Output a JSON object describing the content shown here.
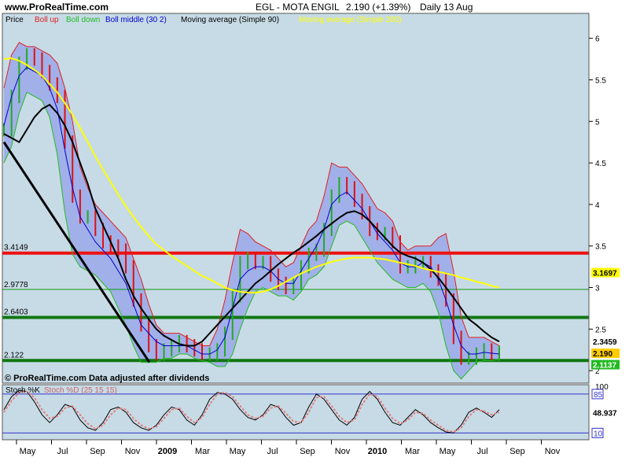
{
  "header": {
    "site": "www.ProRealTime.com",
    "symbol": "EGL - MOTA ENGIL",
    "quote": "2.190 (+1.39%)",
    "period": "Daily 13 Aug"
  },
  "legend": {
    "price": "Price",
    "boll_up": "Boll up",
    "boll_down": "Boll down",
    "boll_middle": "Boll middle (30 2)",
    "ma_simple_90": "Moving average (Simple 90)",
    "ma_simple_200": "Moving average (Simple 200)",
    "stoch_k": "Stoch %K",
    "stoch_d": "Stoch %D (25 15 15)"
  },
  "footer_note": "© ProRealTime.com  Data adjusted after dividends",
  "colors": {
    "plot_bg": "#c7dbe6",
    "band_fill": "#9aa8e8",
    "boll_up": "#e02020",
    "boll_down": "#22bb22",
    "boll_middle": "#0000cc",
    "ma90": "#000000",
    "ma200": "#ffff00",
    "candle_up": "#22aa22",
    "candle_down": "#dd1111",
    "red_line": "#ee1111",
    "green_line": "#118811"
  },
  "chart_data": [
    {
      "type": "line",
      "title": "EGL - MOTA ENGIL",
      "x_ticks": [
        "May",
        "Jul",
        "Sep",
        "Nov",
        "2009",
        "Mar",
        "May",
        "Jul",
        "Sep",
        "Nov",
        "2010",
        "Mar",
        "May",
        "Jul",
        "Sep",
        "Nov"
      ],
      "y_ticks": [
        "6",
        "5.5",
        "5",
        "4.5",
        "4",
        "3.5",
        "3",
        "2.5",
        "2"
      ],
      "ylim": [
        1.85,
        6.3
      ],
      "horizontal_lines": [
        {
          "label": "3.4149",
          "value": 3.4149,
          "color": "#ee1111"
        },
        {
          "label": "2.9778",
          "value": 2.9778,
          "color": "#119911"
        },
        {
          "label": "2.6403",
          "value": 2.6403,
          "color": "#117711"
        },
        {
          "label": "2.122",
          "value": 2.122,
          "color": "#117711"
        }
      ],
      "series": [
        {
          "name": "Price",
          "values": [
            4.9,
            5.3,
            5.7,
            5.8,
            5.75,
            5.6,
            5.45,
            5.3,
            4.75,
            4.1,
            3.85,
            3.85,
            3.7,
            3.55,
            3.5,
            3.45,
            3.25,
            2.85,
            2.55,
            2.3,
            2.2,
            2.25,
            2.3,
            2.35,
            2.3,
            2.25,
            2.2,
            2.2,
            2.25,
            2.45,
            2.9,
            3.3,
            3.35,
            3.3,
            3.3,
            3.15,
            3.05,
            3.0,
            3.05,
            3.25,
            3.4,
            3.45,
            3.7,
            4.1,
            4.25,
            4.2,
            4.05,
            3.9,
            3.7,
            3.65,
            3.65,
            3.55,
            3.25,
            3.25,
            3.3,
            3.3,
            3.2,
            3.1,
            2.85,
            2.4,
            2.15,
            2.15,
            2.2,
            2.25,
            2.2,
            2.22
          ]
        },
        {
          "name": "Boll up",
          "values": [
            5.4,
            5.8,
            5.95,
            5.9,
            5.9,
            5.85,
            5.8,
            5.7,
            5.4,
            5.0,
            4.45,
            4.2,
            4.0,
            3.9,
            3.8,
            3.7,
            3.6,
            3.35,
            3.1,
            2.8,
            2.55,
            2.45,
            2.45,
            2.45,
            2.4,
            2.35,
            2.3,
            2.3,
            2.5,
            2.85,
            3.3,
            3.7,
            3.65,
            3.55,
            3.5,
            3.45,
            3.35,
            3.25,
            3.3,
            3.5,
            3.7,
            3.8,
            4.1,
            4.5,
            4.45,
            4.45,
            4.35,
            4.25,
            4.1,
            3.95,
            3.9,
            3.8,
            3.55,
            3.45,
            3.5,
            3.5,
            3.5,
            3.6,
            3.65,
            3.2,
            2.65,
            2.4,
            2.4,
            2.4,
            2.35,
            2.3
          ]
        },
        {
          "name": "Boll down",
          "values": [
            4.5,
            4.7,
            5.1,
            5.35,
            5.3,
            5.25,
            5.05,
            4.6,
            3.9,
            3.4,
            3.25,
            3.2,
            3.15,
            3.05,
            2.95,
            2.75,
            2.55,
            2.3,
            2.1,
            2.1,
            2.1,
            2.15,
            2.15,
            2.2,
            2.2,
            2.15,
            2.12,
            2.1,
            2.05,
            2.05,
            2.2,
            2.5,
            2.75,
            2.95,
            3.0,
            2.95,
            2.9,
            2.9,
            2.85,
            2.95,
            3.1,
            3.15,
            3.25,
            3.5,
            3.75,
            3.8,
            3.75,
            3.6,
            3.45,
            3.3,
            3.2,
            3.1,
            3.05,
            3.0,
            3.0,
            3.05,
            2.95,
            2.7,
            2.3,
            2.0,
            1.9,
            2.0,
            2.1,
            2.12,
            2.12,
            2.14
          ]
        },
        {
          "name": "Boll middle (30 2)",
          "values": [
            4.95,
            5.3,
            5.55,
            5.65,
            5.6,
            5.55,
            5.4,
            5.15,
            4.65,
            4.2,
            3.85,
            3.7,
            3.55,
            3.45,
            3.35,
            3.2,
            3.05,
            2.8,
            2.55,
            2.45,
            2.35,
            2.3,
            2.3,
            2.3,
            2.3,
            2.25,
            2.2,
            2.2,
            2.25,
            2.4,
            2.75,
            3.1,
            3.2,
            3.25,
            3.25,
            3.2,
            3.1,
            3.05,
            3.05,
            3.2,
            3.35,
            3.5,
            3.7,
            4.0,
            4.1,
            4.15,
            4.05,
            3.95,
            3.8,
            3.65,
            3.55,
            3.45,
            3.3,
            3.25,
            3.25,
            3.3,
            3.25,
            3.1,
            2.85,
            2.55,
            2.3,
            2.2,
            2.2,
            2.22,
            2.21,
            2.2
          ]
        },
        {
          "name": "Moving average (Simple 90)",
          "values": [
            4.85,
            4.8,
            4.75,
            4.9,
            5.05,
            5.15,
            5.2,
            5.1,
            4.95,
            4.75,
            4.5,
            4.25,
            3.95,
            3.75,
            3.55,
            3.35,
            3.1,
            2.9,
            2.75,
            2.62,
            2.5,
            2.42,
            2.37,
            2.32,
            2.3,
            2.3,
            2.35,
            2.45,
            2.55,
            2.65,
            2.75,
            2.85,
            2.95,
            3.05,
            3.12,
            3.2,
            3.28,
            3.35,
            3.42,
            3.48,
            3.55,
            3.62,
            3.7,
            3.77,
            3.84,
            3.9,
            3.92,
            3.88,
            3.8,
            3.7,
            3.6,
            3.5,
            3.42,
            3.38,
            3.35,
            3.3,
            3.22,
            3.12,
            3.0,
            2.88,
            2.75,
            2.62,
            2.55,
            2.47,
            2.4,
            2.35
          ]
        },
        {
          "name": "Moving average (Simple 200)",
          "values": [
            5.75,
            5.76,
            5.73,
            5.68,
            5.62,
            5.55,
            5.45,
            5.35,
            5.22,
            5.08,
            4.92,
            4.75,
            4.58,
            4.42,
            4.27,
            4.12,
            3.98,
            3.85,
            3.73,
            3.62,
            3.52,
            3.45,
            3.38,
            3.32,
            3.26,
            3.2,
            3.14,
            3.1,
            3.05,
            3.0,
            2.97,
            2.95,
            2.94,
            2.94,
            2.95,
            2.98,
            3.02,
            3.07,
            3.12,
            3.17,
            3.21,
            3.25,
            3.28,
            3.31,
            3.33,
            3.35,
            3.36,
            3.36,
            3.36,
            3.35,
            3.34,
            3.32,
            3.3,
            3.28,
            3.26,
            3.23,
            3.21,
            3.19,
            3.17,
            3.15,
            3.12,
            3.1,
            3.07,
            3.05,
            3.02,
            3.0
          ]
        }
      ],
      "right_value_labels": [
        {
          "label": "3.1697",
          "value": 3.18,
          "bg": "#ffff00",
          "color": "#000000"
        },
        {
          "label": "2.3459",
          "value": 2.35,
          "bg": "#ffffff",
          "color": "#000000"
        },
        {
          "label": "2.190",
          "value": 2.19,
          "bg": "#ffcc00",
          "color": "#000000"
        },
        {
          "label": "2.1137",
          "value": 2.11,
          "bg": "#22bb22",
          "color": "#ffffff"
        }
      ]
    },
    {
      "type": "line",
      "title": "Stoch %K",
      "y_ticks": [
        "100",
        "85",
        "10"
      ],
      "ylim": [
        0,
        100
      ],
      "horizontal_lines": [
        {
          "label": "85",
          "value": 85
        },
        {
          "label": "10",
          "value": 10
        }
      ],
      "series": [
        {
          "name": "Stoch %K",
          "values": [
            55,
            80,
            92,
            90,
            70,
            45,
            30,
            45,
            65,
            60,
            35,
            20,
            15,
            30,
            55,
            60,
            50,
            30,
            20,
            15,
            25,
            45,
            60,
            55,
            35,
            25,
            45,
            75,
            88,
            85,
            75,
            55,
            40,
            35,
            45,
            65,
            60,
            40,
            25,
            30,
            60,
            85,
            75,
            55,
            35,
            25,
            40,
            75,
            90,
            75,
            50,
            30,
            25,
            40,
            55,
            45,
            30,
            20,
            12,
            10,
            25,
            50,
            58,
            50,
            40,
            55
          ]
        },
        {
          "name": "Stoch %D (25 15 15)",
          "values": [
            50,
            72,
            88,
            90,
            78,
            55,
            38,
            42,
            58,
            62,
            45,
            28,
            18,
            25,
            45,
            58,
            55,
            38,
            25,
            18,
            22,
            38,
            55,
            58,
            42,
            30,
            40,
            65,
            85,
            88,
            80,
            62,
            45,
            38,
            42,
            58,
            62,
            48,
            32,
            30,
            50,
            78,
            80,
            62,
            42,
            30,
            35,
            65,
            85,
            80,
            58,
            38,
            28,
            35,
            50,
            48,
            35,
            25,
            15,
            12,
            20,
            42,
            55,
            52,
            45,
            50
          ]
        }
      ],
      "right_value_labels": [
        {
          "label": "48.937",
          "value": 48.937
        }
      ]
    }
  ]
}
